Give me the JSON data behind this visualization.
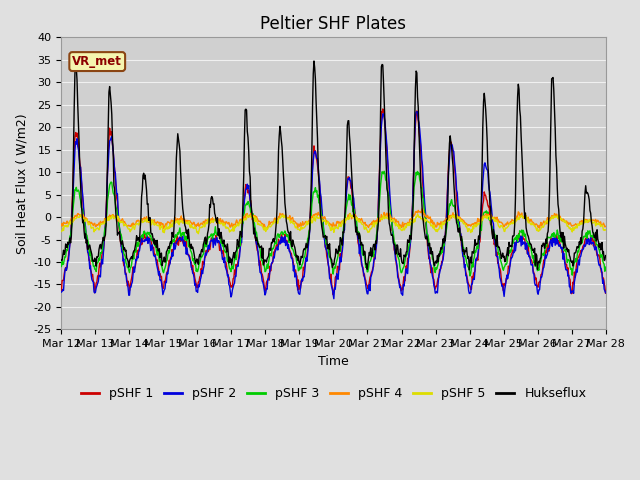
{
  "title": "Peltier SHF Plates",
  "xlabel": "Time",
  "ylabel": "Soil Heat Flux ( W/m2)",
  "ylim": [
    -25,
    40
  ],
  "n_days": 16,
  "start_day": 12,
  "series_colors": {
    "pSHF 1": "#cc0000",
    "pSHF 2": "#0000dd",
    "pSHF 3": "#00cc00",
    "pSHF 4": "#ff8800",
    "pSHF 5": "#dddd00",
    "Hukseflux": "#000000"
  },
  "bg_color": "#e0e0e0",
  "plot_bg_color": "#d0d0d0",
  "grid_color": "#f0f0f0",
  "tick_label_fontsize": 8,
  "title_fontsize": 12,
  "annotation_text": "VR_met",
  "figsize": [
    6.4,
    4.8
  ],
  "dpi": 100
}
